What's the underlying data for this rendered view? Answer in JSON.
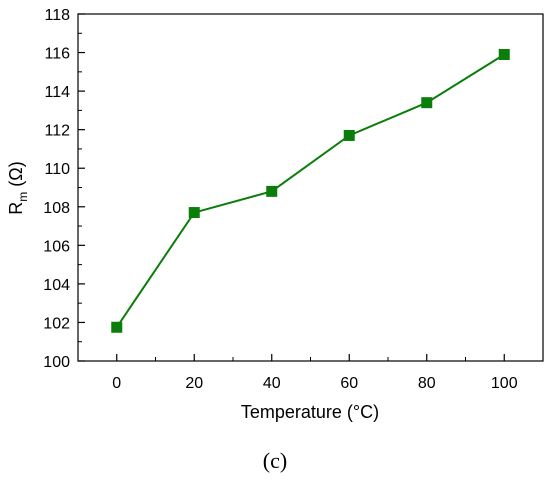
{
  "chart_data": {
    "type": "line",
    "x": [
      0,
      20,
      40,
      60,
      80,
      100
    ],
    "series": [
      {
        "values": [
          101.75,
          107.7,
          108.8,
          111.7,
          113.4,
          115.9
        ],
        "color": "#0a7d0a",
        "marker": "square"
      }
    ],
    "xlabel": "Temperature (°C)",
    "ylabel_main": "R",
    "ylabel_sub": "m",
    "ylabel_unit": " (Ω)",
    "xlim": [
      -10,
      110
    ],
    "ylim": [
      100,
      118
    ],
    "xticks": [
      0,
      20,
      40,
      60,
      80,
      100
    ],
    "yticks": [
      100,
      102,
      104,
      106,
      108,
      110,
      112,
      114,
      116,
      118
    ],
    "grid": false,
    "legend": "none"
  },
  "panel_label": "(c)"
}
